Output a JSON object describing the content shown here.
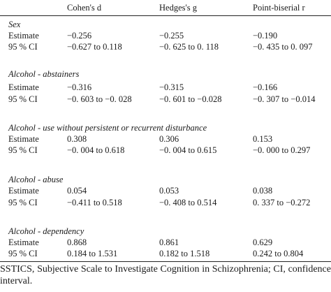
{
  "table": {
    "headers": [
      "Cohen's d",
      "Hedges's g",
      "Point-biserial r"
    ],
    "sections": [
      {
        "title": "Sex",
        "rows": [
          {
            "label": "Estimate",
            "values": [
              "−0.256",
              "−0.255",
              "−0.190"
            ]
          },
          {
            "label": "95 % CI",
            "values": [
              "−0.627 to 0.118",
              "−0. 625 to 0. 118",
              "−0. 435 to 0. 097"
            ]
          }
        ]
      },
      {
        "title": "Alcohol - abstainers",
        "rows": [
          {
            "label": "Estimate",
            "values": [
              "−0.316",
              "−0.315",
              "−0.166"
            ]
          },
          {
            "label": "95 % CI",
            "values": [
              "−0. 603 to −0. 028",
              "−0. 601 to −0.028",
              "−0. 307 to −0.014"
            ]
          }
        ]
      },
      {
        "title": "Alcohol - use without persistent or recurrent disturbance",
        "rows": [
          {
            "label": "Estimate",
            "values": [
              "0.308",
              "0.306",
              "0.153"
            ]
          },
          {
            "label": "95 % CI",
            "values": [
              "−0. 004 to 0.618",
              "−0. 004 to 0.615",
              "−0. 000 to 0.297"
            ]
          }
        ]
      },
      {
        "title": "Alcohol - abuse",
        "rows": [
          {
            "label": "Estimate",
            "values": [
              "0.054",
              "0.053",
              "0.038"
            ]
          },
          {
            "label": "95 % CI",
            "values": [
              "−0.411 to 0.518",
              "−0. 408 to 0.514",
              "0. 337 to −0.272"
            ]
          }
        ]
      },
      {
        "title": "Alcohol - dependency",
        "rows": [
          {
            "label": "Estimate",
            "values": [
              "0.868",
              "0.861",
              "0.629"
            ]
          },
          {
            "label": "95 % CI",
            "values": [
              "0.184 to 1.531",
              "0.182 to 1.518",
              "0.242 to 0.804"
            ]
          }
        ]
      }
    ]
  },
  "footnote": "SSTICS, Subjective Scale to Investigate Cognition in Schizophrenia; CI, confidence interval."
}
